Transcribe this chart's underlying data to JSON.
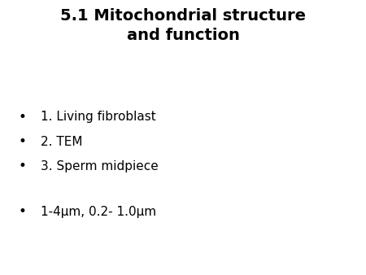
{
  "title_line1": "5.1 Mitochondrial structure",
  "title_line2": "and function",
  "bullet_items": [
    "1. Living fibroblast",
    "2. TEM",
    "3. Sperm midpiece"
  ],
  "extra_bullet": "1-4μm, 0.2- 1.0μm",
  "background_color": "#ffffff",
  "text_color": "#000000",
  "title_fontsize": 14,
  "body_fontsize": 11,
  "bullet_char": "•",
  "title_font_weight": "bold",
  "body_font_weight": "normal",
  "font_family": "DejaVu Sans"
}
